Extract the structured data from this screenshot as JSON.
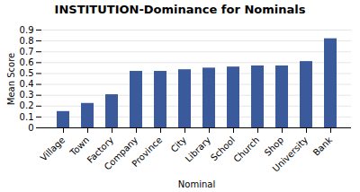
{
  "chart_data": {
    "type": "bar",
    "title": "INSTITUTION-Dominance for Nominals",
    "xlabel": "Nominal",
    "ylabel": "Mean Score",
    "categories": [
      "Village",
      "Town",
      "Factory",
      "Company",
      "Province",
      "City",
      "Library",
      "School",
      "Church",
      "Shop",
      "University",
      "Bank"
    ],
    "values": [
      0.15,
      0.225,
      0.305,
      0.52,
      0.52,
      0.535,
      0.55,
      0.56,
      0.57,
      0.57,
      0.61,
      0.82
    ],
    "color": "#3A5A9B",
    "ylim": [
      0,
      0.9
    ],
    "yticks": [
      0,
      0.1,
      0.2,
      0.3,
      0.4,
      0.5,
      0.6,
      0.7,
      0.8,
      0.9
    ],
    "grid": true
  }
}
